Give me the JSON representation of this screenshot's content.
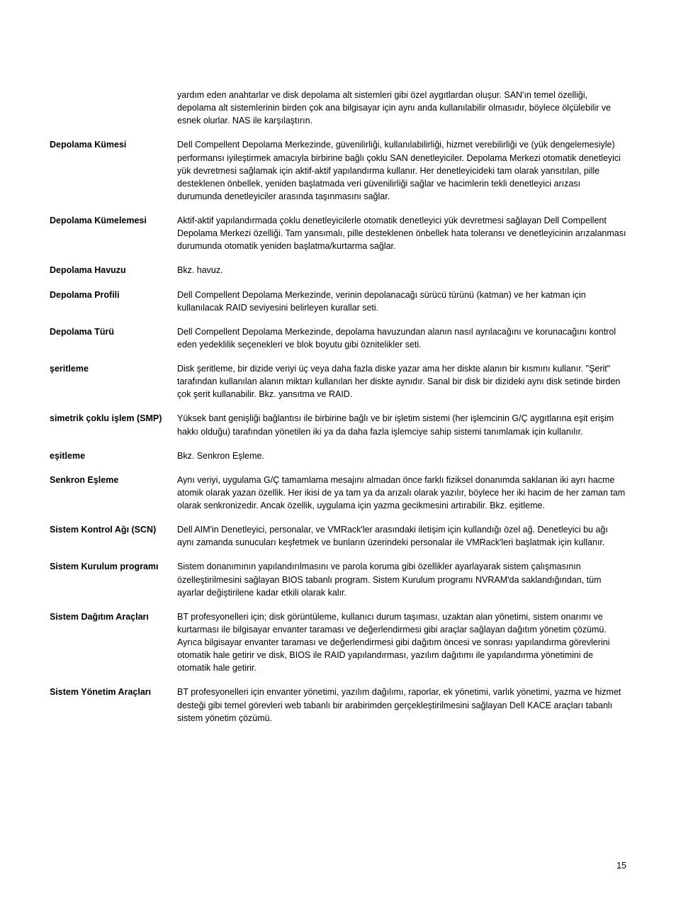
{
  "page_number": "15",
  "entries": [
    {
      "term": "",
      "def": "yardım eden anahtarlar ve disk depolama alt sistemleri gibi özel aygıtlardan oluşur. SAN'ın temel özelliği, depolama alt sistemlerinin birden çok ana bilgisayar için aynı anda kullanılabilir olmasıdır, böylece ölçülebilir ve esnek olurlar. NAS ile karşılaştırın."
    },
    {
      "term": "Depolama Kümesi",
      "def": "Dell Compellent Depolama Merkezinde, güvenilirliği, kullanılabilirliği, hizmet verebilirliği ve (yük dengelemesiyle) performansı iyileştirmek amacıyla birbirine bağlı çoklu SAN denetleyiciler. Depolama Merkezi otomatik denetleyici yük devretmesi sağlamak için aktif-aktif yapılandırma kullanır. Her denetleyicideki tam olarak yansıtılan, pille desteklenen önbellek, yeniden başlatmada veri güvenilirliği sağlar ve hacimlerin tekli denetleyici arızası durumunda denetleyiciler arasında taşınmasını sağlar."
    },
    {
      "term": "Depolama Kümelemesi",
      "def": "Aktif-aktif yapılandırmada çoklu denetleyicilerle otomatik denetleyici yük devretmesi sağlayan Dell Compellent Depolama Merkezi özelliği. Tam yansımalı, pille desteklenen önbellek hata toleransı ve denetleyicinin arızalanması durumunda otomatik yeniden başlatma/kurtarma sağlar."
    },
    {
      "term": "Depolama Havuzu",
      "def": "Bkz. havuz."
    },
    {
      "term": "Depolama Profili",
      "def": "Dell Compellent Depolama Merkezinde, verinin depolanacağı sürücü türünü (katman) ve her katman için kullanılacak RAID seviyesini belirleyen kurallar seti."
    },
    {
      "term": "Depolama Türü",
      "def": "Dell Compellent Depolama Merkezinde, depolama havuzundan alanın nasıl ayrılacağını ve korunacağını kontrol eden yedeklilik seçenekleri ve blok boyutu gibi öznitelikler seti."
    },
    {
      "term": "şeritleme",
      "def": "Disk şeritleme, bir dizide veriyi üç veya daha fazla diske yazar ama her diskte alanın bir kısmını kullanır. \"Şerit\" tarafından kullanılan alanın miktarı kullanılan her diskte aynıdır. Sanal bir disk bir dizideki aynı disk setinde birden çok şerit kullanabilir. Bkz. yansıtma ve RAID."
    },
    {
      "term": "simetrik çoklu işlem (SMP)",
      "def": "Yüksek bant genişliği bağlantısı ile birbirine bağlı ve bir işletim sistemi (her işlemcinin G/Ç aygıtlarına eşit erişim hakkı olduğu) tarafından yönetilen iki ya da daha fazla işlemciye sahip sistemi tanımlamak için kullanılır."
    },
    {
      "term": "eşitleme",
      "def": "Bkz. Senkron Eşleme."
    },
    {
      "term": "Senkron Eşleme",
      "def": "Aynı veriyi, uygulama G/Ç tamamlama mesajını almadan önce farklı fiziksel donanımda saklanan iki ayrı hacme atomik olarak yazan özellik. Her ikisi de ya tam ya da arızalı olarak yazılır, böylece her iki hacim de her zaman tam olarak senkronizedir. Ancak özellik, uygulama için yazma gecikmesini artırabilir. Bkz. eşitleme."
    },
    {
      "term": "Sistem Kontrol Ağı (SCN)",
      "def": "Dell AIM'in Denetleyici, personalar, ve VMRack'ler arasındaki iletişim için kullandığı özel ağ. Denetleyici bu ağı aynı zamanda sunucuları keşfetmek ve bunların üzerindeki personalar ile VMRack'leri başlatmak için kullanır."
    },
    {
      "term": "Sistem Kurulum programı",
      "def": "Sistem donanımının yapılandırılmasını ve parola koruma gibi özellikler ayarlayarak sistem çalışmasının özelleştirilmesini sağlayan BIOS tabanlı program. Sistem Kurulum programı NVRAM'da saklandığından, tüm ayarlar değiştirilene kadar etkili olarak kalır."
    },
    {
      "term": "Sistem Dağıtım Araçları",
      "def": "BT profesyonelleri için; disk görüntüleme, kullanıcı durum taşıması, uzaktan alan yönetimi, sistem onarımı ve kurtarması ile bilgisayar envanter taraması ve değerlendirmesi gibi araçlar sağlayan dağıtım yönetim çözümü. Ayrıca bilgisayar envanter taraması ve değerlendirmesi gibi dağıtım öncesi ve sonrası yapılandırma görevlerini otomatik hale getirir ve disk, BIOS ile RAID yapılandırması, yazılım dağıtımı ile yapılandırma yönetimini de otomatik hale getirir."
    },
    {
      "term": "Sistem Yönetim Araçları",
      "def": "BT profesyonelleri için envanter yönetimi, yazılım dağılımı, raporlar, ek yönetimi, varlık yönetimi, yazma ve hizmet desteği gibi temel görevleri web tabanlı bir arabirimden gerçekleştirilmesini sağlayan Dell KACE araçları tabanlı sistem yönetim çözümü."
    }
  ]
}
